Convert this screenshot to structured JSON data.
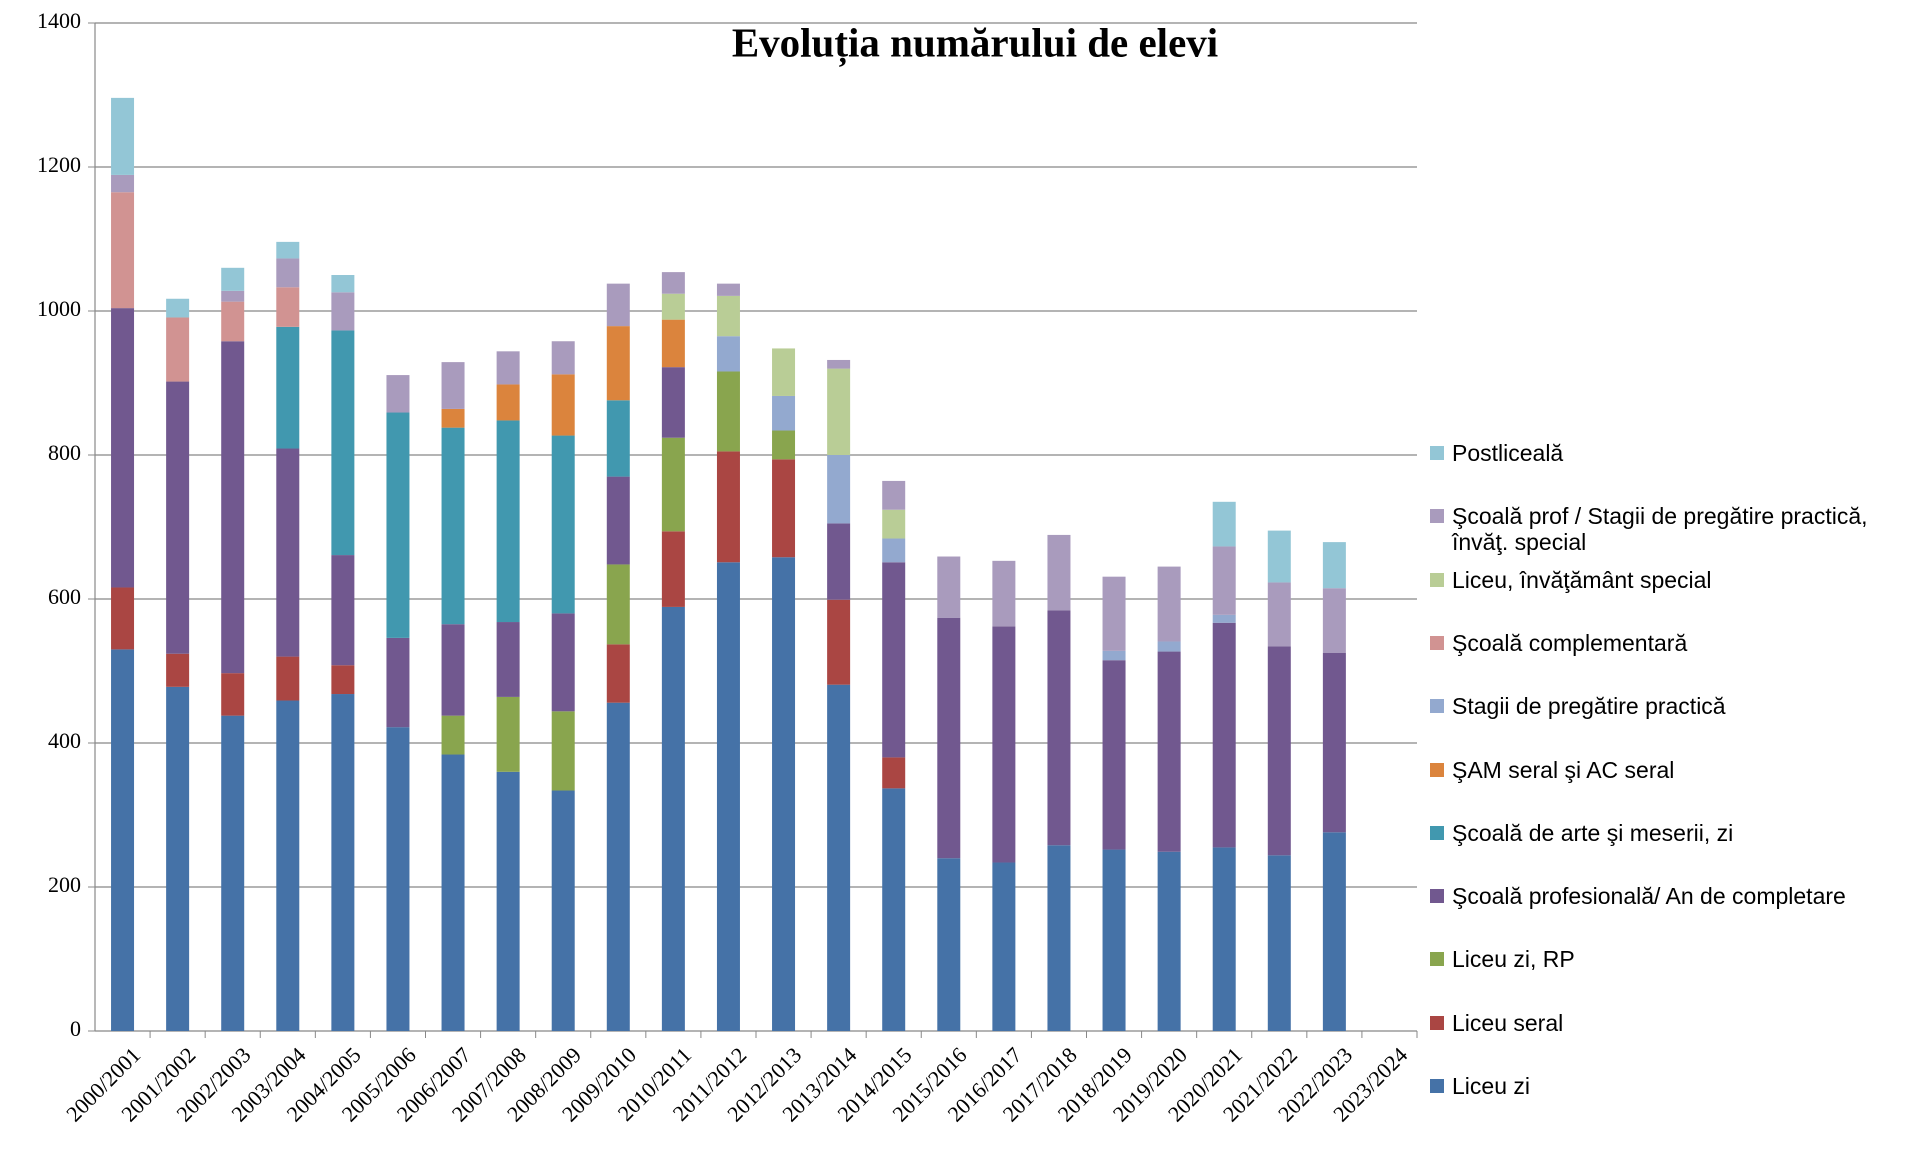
{
  "chart_data": {
    "type": "stacked-bar",
    "title": "Evoluția numărului de elevi",
    "categories": [
      "2000/2001",
      "2001/2002",
      "2002/2003",
      "2003/2004",
      "2004/2005",
      "2005/2006",
      "2006/2007",
      "2007/2008",
      "2008/2009",
      "2009/2010",
      "2010/2011",
      "2011/2012",
      "2012/2013",
      "2013/2014",
      "2014/2015",
      "2015/2016",
      "2016/2017",
      "2017/2018",
      "2018/2019",
      "2019/2020",
      "2020/2021",
      "2021/2022",
      "2022/2023",
      "2023/2024"
    ],
    "ylim": [
      0,
      1400
    ],
    "yticks": [
      0,
      200,
      400,
      600,
      800,
      1000,
      1200,
      1400
    ],
    "grid": true,
    "series": [
      {
        "name": "Liceu zi",
        "color": "#4572a7",
        "values": [
          530,
          478,
          438,
          459,
          468,
          422,
          384,
          360,
          334,
          456,
          589,
          651,
          658,
          481,
          337,
          240,
          234,
          258,
          252,
          249,
          255,
          244,
          276,
          null
        ]
      },
      {
        "name": "Liceu seral",
        "color": "#aa4643",
        "values": [
          86,
          46,
          59,
          61,
          40,
          null,
          null,
          null,
          null,
          81,
          105,
          154,
          136,
          118,
          43,
          null,
          null,
          null,
          null,
          null,
          null,
          null,
          null,
          null
        ]
      },
      {
        "name": "Liceu zi, RP",
        "color": "#89a54e",
        "values": [
          null,
          null,
          null,
          null,
          null,
          null,
          54,
          104,
          110,
          111,
          130,
          111,
          40,
          null,
          null,
          null,
          null,
          null,
          null,
          null,
          null,
          null,
          null,
          null
        ]
      },
      {
        "name": "Şcoală profesională/ An de completare",
        "color": "#71588f",
        "values": [
          388,
          378,
          461,
          289,
          153,
          124,
          127,
          104,
          136,
          122,
          98,
          null,
          null,
          106,
          271,
          334,
          328,
          326,
          263,
          278,
          312,
          290,
          249,
          null
        ]
      },
      {
        "name": "Şcoală de arte şi meserii, zi",
        "color": "#4198af",
        "values": [
          null,
          null,
          null,
          169,
          312,
          313,
          273,
          280,
          247,
          106,
          null,
          null,
          null,
          null,
          null,
          null,
          null,
          null,
          null,
          null,
          null,
          null,
          null,
          null
        ]
      },
      {
        "name": "ŞAM seral şi AC seral",
        "color": "#db843d",
        "values": [
          null,
          null,
          null,
          null,
          null,
          null,
          26,
          50,
          85,
          103,
          66,
          null,
          null,
          null,
          null,
          null,
          null,
          null,
          null,
          null,
          null,
          null,
          null,
          null
        ]
      },
      {
        "name": "Stagii de pregătire practică",
        "color": "#93a9cf",
        "values": [
          null,
          null,
          null,
          null,
          null,
          null,
          null,
          null,
          null,
          null,
          null,
          49,
          48,
          95,
          33,
          null,
          null,
          null,
          13,
          14,
          11,
          null,
          null,
          null
        ]
      },
      {
        "name": "Şcoală complementară",
        "color": "#d19392",
        "values": [
          161,
          89,
          55,
          55,
          null,
          null,
          null,
          null,
          null,
          null,
          null,
          null,
          null,
          null,
          null,
          null,
          null,
          null,
          null,
          null,
          null,
          null,
          null,
          null
        ]
      },
      {
        "name": "Liceu, învăţământ special",
        "color": "#b9cd96",
        "values": [
          null,
          null,
          null,
          null,
          null,
          null,
          null,
          null,
          null,
          null,
          36,
          56,
          66,
          120,
          40,
          null,
          null,
          null,
          null,
          null,
          null,
          null,
          null,
          null
        ]
      },
      {
        "name": "Şcoală prof / Stagii de pregătire practică, învăţ. special",
        "color": "#a99bbd",
        "values": [
          24,
          null,
          15,
          40,
          53,
          52,
          65,
          46,
          46,
          59,
          30,
          17,
          null,
          12,
          40,
          85,
          91,
          105,
          103,
          104,
          95,
          89,
          90,
          null
        ]
      },
      {
        "name": "Postliceală",
        "color": "#93c6d6",
        "values": [
          107,
          26,
          32,
          23,
          24,
          null,
          null,
          null,
          null,
          null,
          null,
          null,
          null,
          null,
          null,
          null,
          null,
          null,
          null,
          null,
          62,
          72,
          64,
          null
        ]
      }
    ]
  }
}
